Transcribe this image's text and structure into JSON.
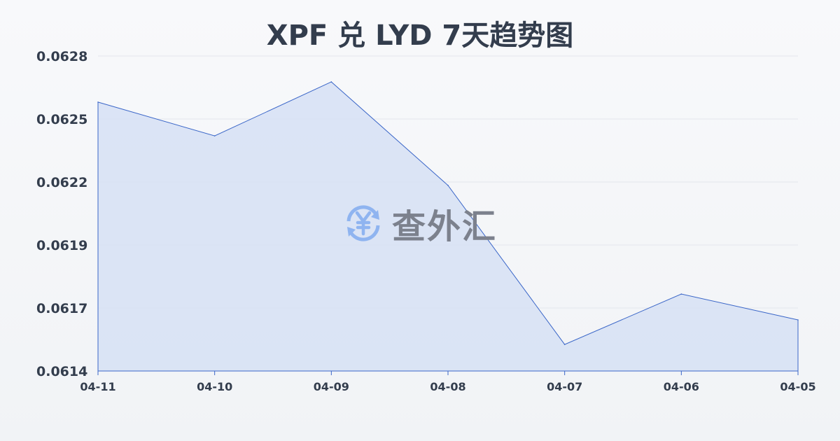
{
  "title": "XPF 兑 LYD 7天趋势图",
  "watermark": {
    "text": "查外汇",
    "icon": "yen-exchange-icon",
    "icon_color": "#8fb4f0"
  },
  "chart_data": {
    "type": "area",
    "title": "XPF 兑 LYD 7天趋势图",
    "categories": [
      "04-11",
      "04-10",
      "04-09",
      "04-08",
      "04-07",
      "04-06",
      "04-05"
    ],
    "values": [
      0.062595,
      0.062445,
      0.062685,
      0.062225,
      0.061518,
      0.061742,
      0.061627
    ],
    "yticks": [
      "0.0628",
      "0.0625",
      "0.0622",
      "0.0619",
      "0.0617",
      "0.0614"
    ],
    "ylim": [
      0.0614,
      0.0628
    ],
    "grid": true,
    "line_color": "#3a66c8",
    "fill_color": "#d6e1f5"
  }
}
